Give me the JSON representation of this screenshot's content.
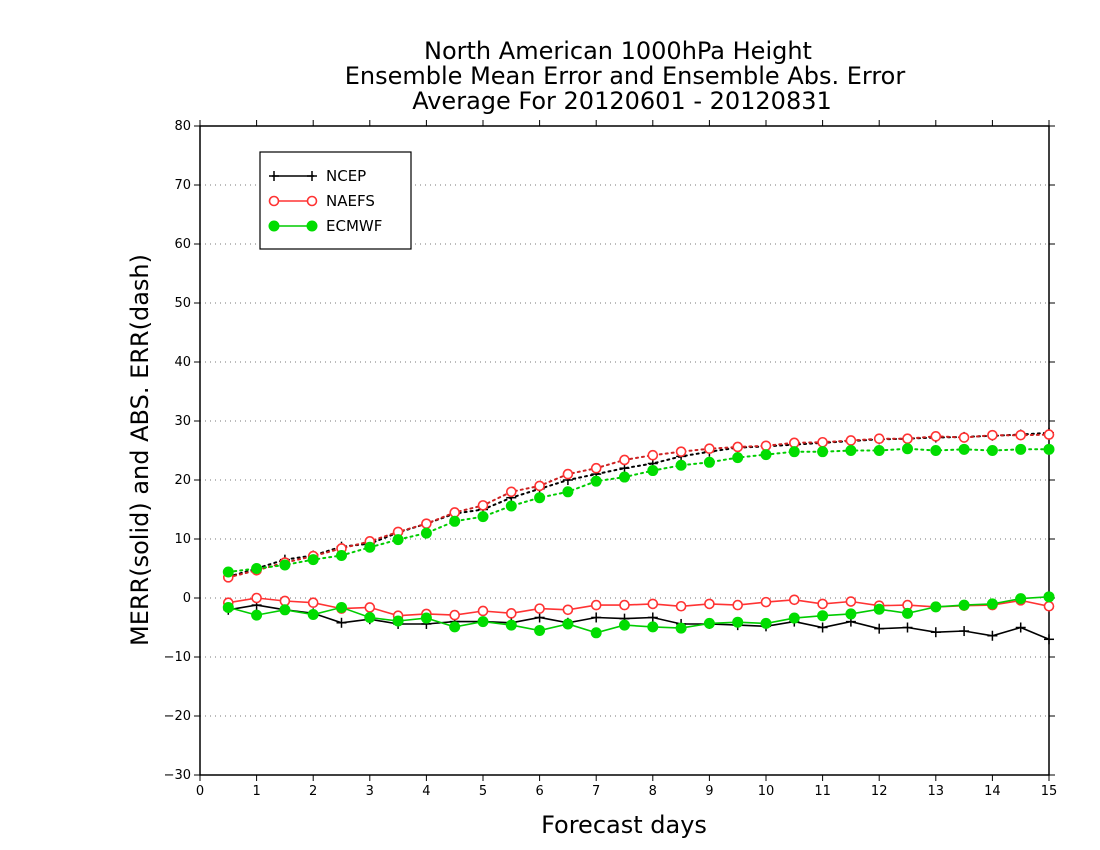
{
  "chart_data": {
    "type": "line",
    "title": [
      "North American 1000hPa Height",
      "Ensemble Mean Error and Ensemble Abs. Error",
      "Average For 20120601 - 20120831"
    ],
    "xlabel": "Forecast days",
    "ylabel": "MERR(solid) and ABS. ERR(dash)",
    "xlim": [
      0,
      15
    ],
    "ylim": [
      -30,
      80
    ],
    "xticks": [
      0,
      1,
      2,
      3,
      4,
      5,
      6,
      7,
      8,
      9,
      10,
      11,
      12,
      13,
      14,
      15
    ],
    "yticks": [
      -30,
      -20,
      -10,
      0,
      10,
      20,
      30,
      40,
      50,
      60,
      70,
      80
    ],
    "grid": "horizontal dotted",
    "legend_position": "top-left",
    "x": [
      0.5,
      1,
      1.5,
      2,
      2.5,
      3,
      3.5,
      4,
      4.5,
      5,
      5.5,
      6,
      6.5,
      7,
      7.5,
      8,
      8.5,
      9,
      9.5,
      10,
      10.5,
      11,
      11.5,
      12,
      12.5,
      13,
      13.5,
      14,
      14.5,
      15
    ],
    "series": [
      {
        "name": "NCEP",
        "color": "#000000",
        "marker": "plus",
        "merr": [
          -2.0,
          -1.2,
          -2.0,
          -2.6,
          -4.2,
          -3.6,
          -4.4,
          -4.4,
          -4.0,
          -4.0,
          -4.2,
          -3.3,
          -4.2,
          -3.3,
          -3.5,
          -3.3,
          -4.4,
          -4.4,
          -4.6,
          -4.8,
          -4.0,
          -5.0,
          -4.0,
          -5.2,
          -5.0,
          -5.8,
          -5.6,
          -6.4,
          -5.0,
          -7.0
        ],
        "abs_err": [
          3.6,
          5.0,
          6.5,
          7.2,
          8.7,
          9.2,
          11.1,
          12.6,
          14.3,
          15.0,
          17.0,
          18.5,
          20.0,
          21.0,
          22.0,
          22.8,
          24.0,
          24.8,
          25.5,
          25.7,
          26.0,
          26.3,
          26.6,
          26.9,
          27.0,
          27.2,
          27.3,
          27.5,
          27.7,
          28.0
        ]
      },
      {
        "name": "NAEFS",
        "color": "#ff3333",
        "marker": "open-circle",
        "merr": [
          -0.8,
          0.0,
          -0.5,
          -0.8,
          -1.8,
          -1.6,
          -3.0,
          -2.7,
          -2.9,
          -2.2,
          -2.6,
          -1.8,
          -2.0,
          -1.2,
          -1.2,
          -1.0,
          -1.4,
          -1.0,
          -1.2,
          -0.7,
          -0.3,
          -1.0,
          -0.6,
          -1.3,
          -1.2,
          -1.5,
          -1.3,
          -1.2,
          -0.4,
          -1.4
        ],
        "abs_err": [
          3.5,
          4.7,
          6.0,
          7.1,
          8.4,
          9.6,
          11.2,
          12.6,
          14.5,
          15.7,
          18.0,
          19.0,
          21.0,
          22.0,
          23.4,
          24.2,
          24.8,
          25.3,
          25.6,
          25.8,
          26.3,
          26.4,
          26.7,
          27.0,
          27.0,
          27.4,
          27.2,
          27.6,
          27.6,
          27.7
        ]
      },
      {
        "name": "ECMWF",
        "color": "#00dd00",
        "marker": "filled-circle",
        "merr": [
          -1.6,
          -2.9,
          -2.0,
          -2.8,
          -1.6,
          -3.3,
          -3.9,
          -3.4,
          -4.9,
          -4.0,
          -4.6,
          -5.5,
          -4.4,
          -5.9,
          -4.6,
          -4.9,
          -5.1,
          -4.3,
          -4.1,
          -4.3,
          -3.4,
          -3.0,
          -2.7,
          -1.9,
          -2.6,
          -1.5,
          -1.2,
          -1.0,
          -0.1,
          0.2
        ],
        "abs_err": [
          4.4,
          5.0,
          5.6,
          6.5,
          7.2,
          8.6,
          9.9,
          11.0,
          13.0,
          13.8,
          15.6,
          17.0,
          18.0,
          19.8,
          20.5,
          21.6,
          22.5,
          23.0,
          23.8,
          24.3,
          24.8,
          24.8,
          25.0,
          25.0,
          25.3,
          25.0,
          25.2,
          25.0,
          25.2,
          25.2
        ]
      }
    ]
  }
}
